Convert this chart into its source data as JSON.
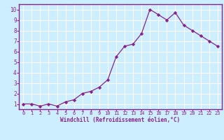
{
  "x": [
    0,
    1,
    2,
    3,
    4,
    5,
    6,
    7,
    8,
    9,
    10,
    11,
    12,
    13,
    14,
    15,
    16,
    17,
    18,
    19,
    20,
    21,
    22,
    23
  ],
  "y": [
    1.0,
    1.0,
    0.8,
    1.0,
    0.8,
    1.2,
    1.4,
    2.0,
    2.2,
    2.6,
    3.3,
    5.5,
    6.5,
    6.7,
    7.7,
    10.0,
    9.5,
    9.0,
    9.7,
    8.5,
    8.0,
    7.5,
    7.0,
    6.5
  ],
  "line_color": "#882288",
  "marker": "D",
  "marker_size": 2.2,
  "bg_color": "#cceeff",
  "grid_color": "#ffffff",
  "xlabel": "Windchill (Refroidissement éolien,°C)",
  "ylabel_ticks": [
    1,
    2,
    3,
    4,
    5,
    6,
    7,
    8,
    9,
    10
  ],
  "xlim": [
    -0.5,
    23.5
  ],
  "ylim": [
    0.5,
    10.5
  ],
  "spine_color": "#882288",
  "tick_label_color": "#882288",
  "xlabel_color": "#882288"
}
